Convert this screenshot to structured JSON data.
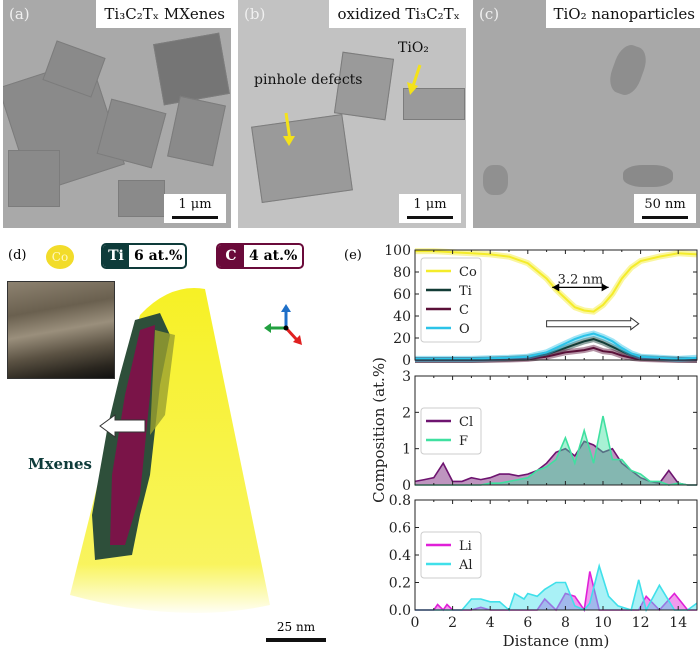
{
  "panels": {
    "a": {
      "label": "(a)",
      "title": "Ti₃C₂Tₓ MXenes",
      "scalebar": "1 μm"
    },
    "b": {
      "label": "(b)",
      "title": "oxidized Ti₃C₂Tₓ",
      "scalebar": "1 μm",
      "annotations": [
        "pinhole defects",
        "TiO₂"
      ]
    },
    "c": {
      "label": "(c)",
      "title": "TiO₂ nanoparticles",
      "scalebar": "50 nm"
    },
    "d": {
      "label": "(d)",
      "legend": [
        {
          "element": "Co",
          "color": "#f2dc2a"
        },
        {
          "element": "Ti",
          "value": "6 at.%",
          "color": "#0e3b3a"
        },
        {
          "element": "C",
          "value": "4 at.%",
          "color": "#6a0a3a"
        }
      ],
      "feature_label": "Mxenes",
      "scalebar": "25 nm"
    },
    "e": {
      "label": "(e)"
    }
  },
  "chart_data": [
    {
      "type": "line",
      "title": "",
      "xlabel": "",
      "ylabel": "Composition (at.%)",
      "xlim": [
        0,
        15
      ],
      "ylim": [
        0,
        100
      ],
      "yticks": [
        0,
        20,
        40,
        60,
        80,
        100
      ],
      "legend": "top-left",
      "annotation": "3.2 nm",
      "x": [
        0,
        1,
        2,
        3,
        4,
        5,
        6,
        7,
        7.5,
        8,
        8.5,
        9,
        9.5,
        10,
        10.5,
        11,
        11.5,
        12,
        13,
        14,
        15
      ],
      "series": [
        {
          "name": "Co",
          "color": "#f4ec2a",
          "values": [
            99,
            99,
            98,
            97,
            96,
            94,
            88,
            74,
            64,
            56,
            48,
            45,
            44,
            50,
            60,
            74,
            84,
            90,
            94,
            97,
            96
          ]
        },
        {
          "name": "Ti",
          "color": "#123c36",
          "values": [
            0,
            0,
            0,
            0,
            0.5,
            1,
            2,
            5,
            8,
            11,
            14,
            17,
            19,
            16,
            12,
            8,
            4,
            2,
            1,
            0.5,
            0
          ]
        },
        {
          "name": "C",
          "color": "#5a1038",
          "values": [
            0,
            0,
            0,
            0,
            0.3,
            0.5,
            1,
            3,
            5,
            7,
            8,
            9,
            11,
            8,
            7,
            4,
            2,
            1,
            0.5,
            0,
            0
          ]
        },
        {
          "name": "O",
          "color": "#2bc3e8",
          "values": [
            1,
            1,
            1,
            1,
            1.5,
            2,
            3,
            7,
            11,
            15,
            19,
            22,
            24,
            21,
            17,
            11,
            6,
            3,
            2,
            1,
            2
          ]
        }
      ]
    },
    {
      "type": "line",
      "xlim": [
        0,
        15
      ],
      "ylim": [
        0,
        3
      ],
      "yticks": [
        0,
        1,
        2,
        3
      ],
      "legend": "left",
      "x": [
        0,
        0.5,
        1,
        1.5,
        2,
        2.5,
        3,
        3.5,
        4,
        4.5,
        5,
        5.5,
        6,
        6.5,
        7,
        7.5,
        8,
        8.5,
        9,
        9.5,
        10,
        10.5,
        11,
        11.5,
        12,
        12.5,
        13,
        13.5,
        14,
        14.5,
        15
      ],
      "series": [
        {
          "name": "Cl",
          "color": "#6e1470",
          "values": [
            0.1,
            0.15,
            0.2,
            0.6,
            0.1,
            0.1,
            0.2,
            0.15,
            0.2,
            0.3,
            0.3,
            0.25,
            0.3,
            0.4,
            0.6,
            0.9,
            1.0,
            0.8,
            1.2,
            1.1,
            0.9,
            1.0,
            0.6,
            0.4,
            0.2,
            0.1,
            0.05,
            0.4,
            0.05,
            0,
            0
          ]
        },
        {
          "name": "F",
          "color": "#3fe0a0",
          "values": [
            0,
            0,
            0,
            0,
            0,
            0,
            0,
            0,
            0.05,
            0.05,
            0.1,
            0.15,
            0.2,
            0.4,
            0.5,
            0.7,
            1.3,
            0.6,
            1.5,
            0.6,
            1.9,
            0.7,
            0.7,
            0.4,
            0.3,
            0.1,
            0.1,
            0,
            0.05,
            0,
            0
          ]
        }
      ]
    },
    {
      "type": "line",
      "xlabel": "Distance (nm)",
      "xlim": [
        0,
        15
      ],
      "xticks": [
        0,
        2,
        4,
        6,
        8,
        10,
        12,
        14
      ],
      "ylim": [
        0,
        0.8
      ],
      "yticks": [
        0.0,
        0.2,
        0.4,
        0.6,
        0.8
      ],
      "legend": "left",
      "x": [
        0,
        0.5,
        1,
        1.2,
        1.5,
        1.7,
        2,
        2.5,
        3,
        3.5,
        4,
        4.5,
        5,
        5.3,
        5.8,
        6,
        6.5,
        6.9,
        7.5,
        8,
        8.5,
        9,
        9.3,
        9.8,
        10.3,
        10.8,
        11.5,
        11.9,
        12.3,
        13,
        13.8,
        14.5,
        15
      ],
      "series": [
        {
          "name": "Li",
          "color": "#e020d8",
          "values": [
            0,
            0,
            0,
            0.04,
            0,
            0.04,
            0,
            0,
            0,
            0.02,
            0,
            0,
            0,
            0,
            0,
            0,
            0,
            0.08,
            0,
            0.12,
            0.1,
            0,
            0.28,
            0,
            0,
            0,
            0,
            0,
            0.1,
            0,
            0.12,
            0,
            0
          ]
        },
        {
          "name": "Al",
          "color": "#40e0ea",
          "values": [
            0,
            0,
            0,
            0,
            0,
            0,
            0,
            0,
            0.08,
            0.08,
            0.06,
            0.06,
            0,
            0.12,
            0.08,
            0.12,
            0.1,
            0.15,
            0.2,
            0.2,
            0.03,
            0,
            0.05,
            0.32,
            0.1,
            0.03,
            0,
            0.22,
            0,
            0.18,
            0,
            0,
            0.05
          ]
        }
      ]
    }
  ]
}
